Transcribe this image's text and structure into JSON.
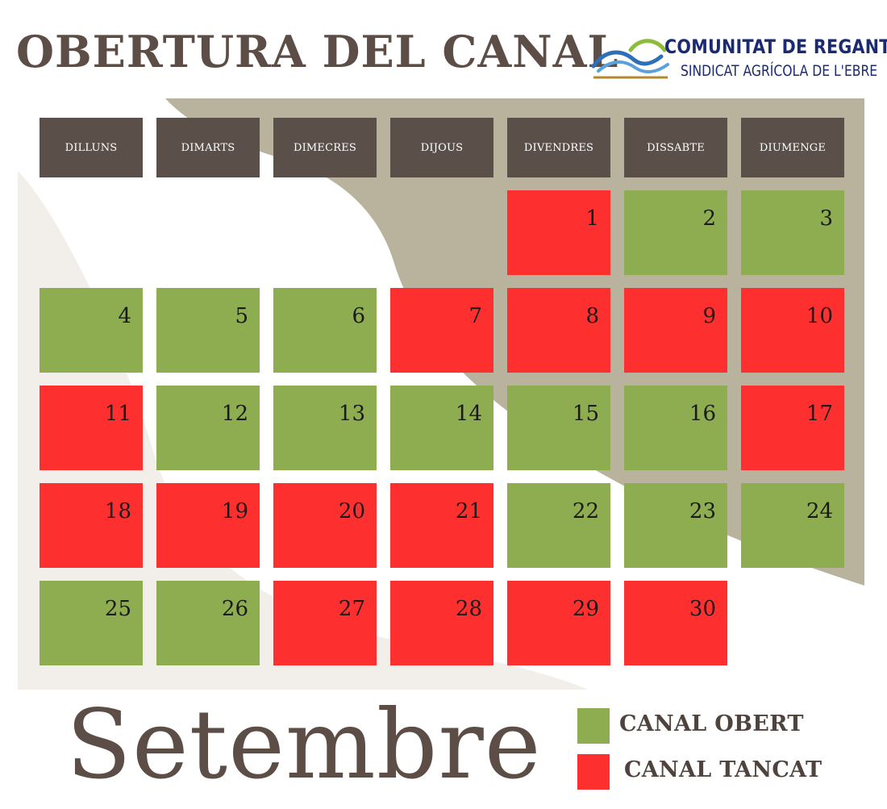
{
  "header": {
    "title": "OBERTURA DEL CANAL"
  },
  "logo": {
    "line1": "COMUNITAT DE REGANTS",
    "line2": "SINDICAT AGRÍCOLA DE L'EBRE",
    "icon": "river-waves-icon"
  },
  "colors": {
    "open": "#8ead50",
    "closed": "#fe302f",
    "header_cell": "#5b4f49",
    "text_brown": "#5c4e46",
    "shape_taupe": "#b9b39e",
    "shape_cream": "#f2efea",
    "logo_navy": "#1b2b73"
  },
  "calendar": {
    "weekdays": [
      "DILLUNS",
      "DIMARTS",
      "DIMECRES",
      "DIJOUS",
      "DIVENDRES",
      "DISSABTE",
      "DIUMENGE"
    ],
    "first_weekday_index": 4,
    "days": [
      {
        "day": "1",
        "status": "closed"
      },
      {
        "day": "2",
        "status": "open"
      },
      {
        "day": "3",
        "status": "open"
      },
      {
        "day": "4",
        "status": "open"
      },
      {
        "day": "5",
        "status": "open"
      },
      {
        "day": "6",
        "status": "open"
      },
      {
        "day": "7",
        "status": "closed"
      },
      {
        "day": "8",
        "status": "closed"
      },
      {
        "day": "9",
        "status": "closed"
      },
      {
        "day": "10",
        "status": "closed"
      },
      {
        "day": "11",
        "status": "closed"
      },
      {
        "day": "12",
        "status": "open"
      },
      {
        "day": "13",
        "status": "open"
      },
      {
        "day": "14",
        "status": "open"
      },
      {
        "day": "15",
        "status": "open"
      },
      {
        "day": "16",
        "status": "open"
      },
      {
        "day": "17",
        "status": "closed"
      },
      {
        "day": "18",
        "status": "closed"
      },
      {
        "day": "19",
        "status": "closed"
      },
      {
        "day": "20",
        "status": "closed"
      },
      {
        "day": "21",
        "status": "closed"
      },
      {
        "day": "22",
        "status": "open"
      },
      {
        "day": "23",
        "status": "open"
      },
      {
        "day": "24",
        "status": "open"
      },
      {
        "day": "25",
        "status": "open"
      },
      {
        "day": "26",
        "status": "open"
      },
      {
        "day": "27",
        "status": "closed"
      },
      {
        "day": "28",
        "status": "closed"
      },
      {
        "day": "29",
        "status": "closed"
      },
      {
        "day": "30",
        "status": "closed"
      }
    ]
  },
  "month": "Setembre",
  "legend": {
    "open_label": "CANAL OBERT",
    "closed_label": "CANAL TANCAT"
  }
}
